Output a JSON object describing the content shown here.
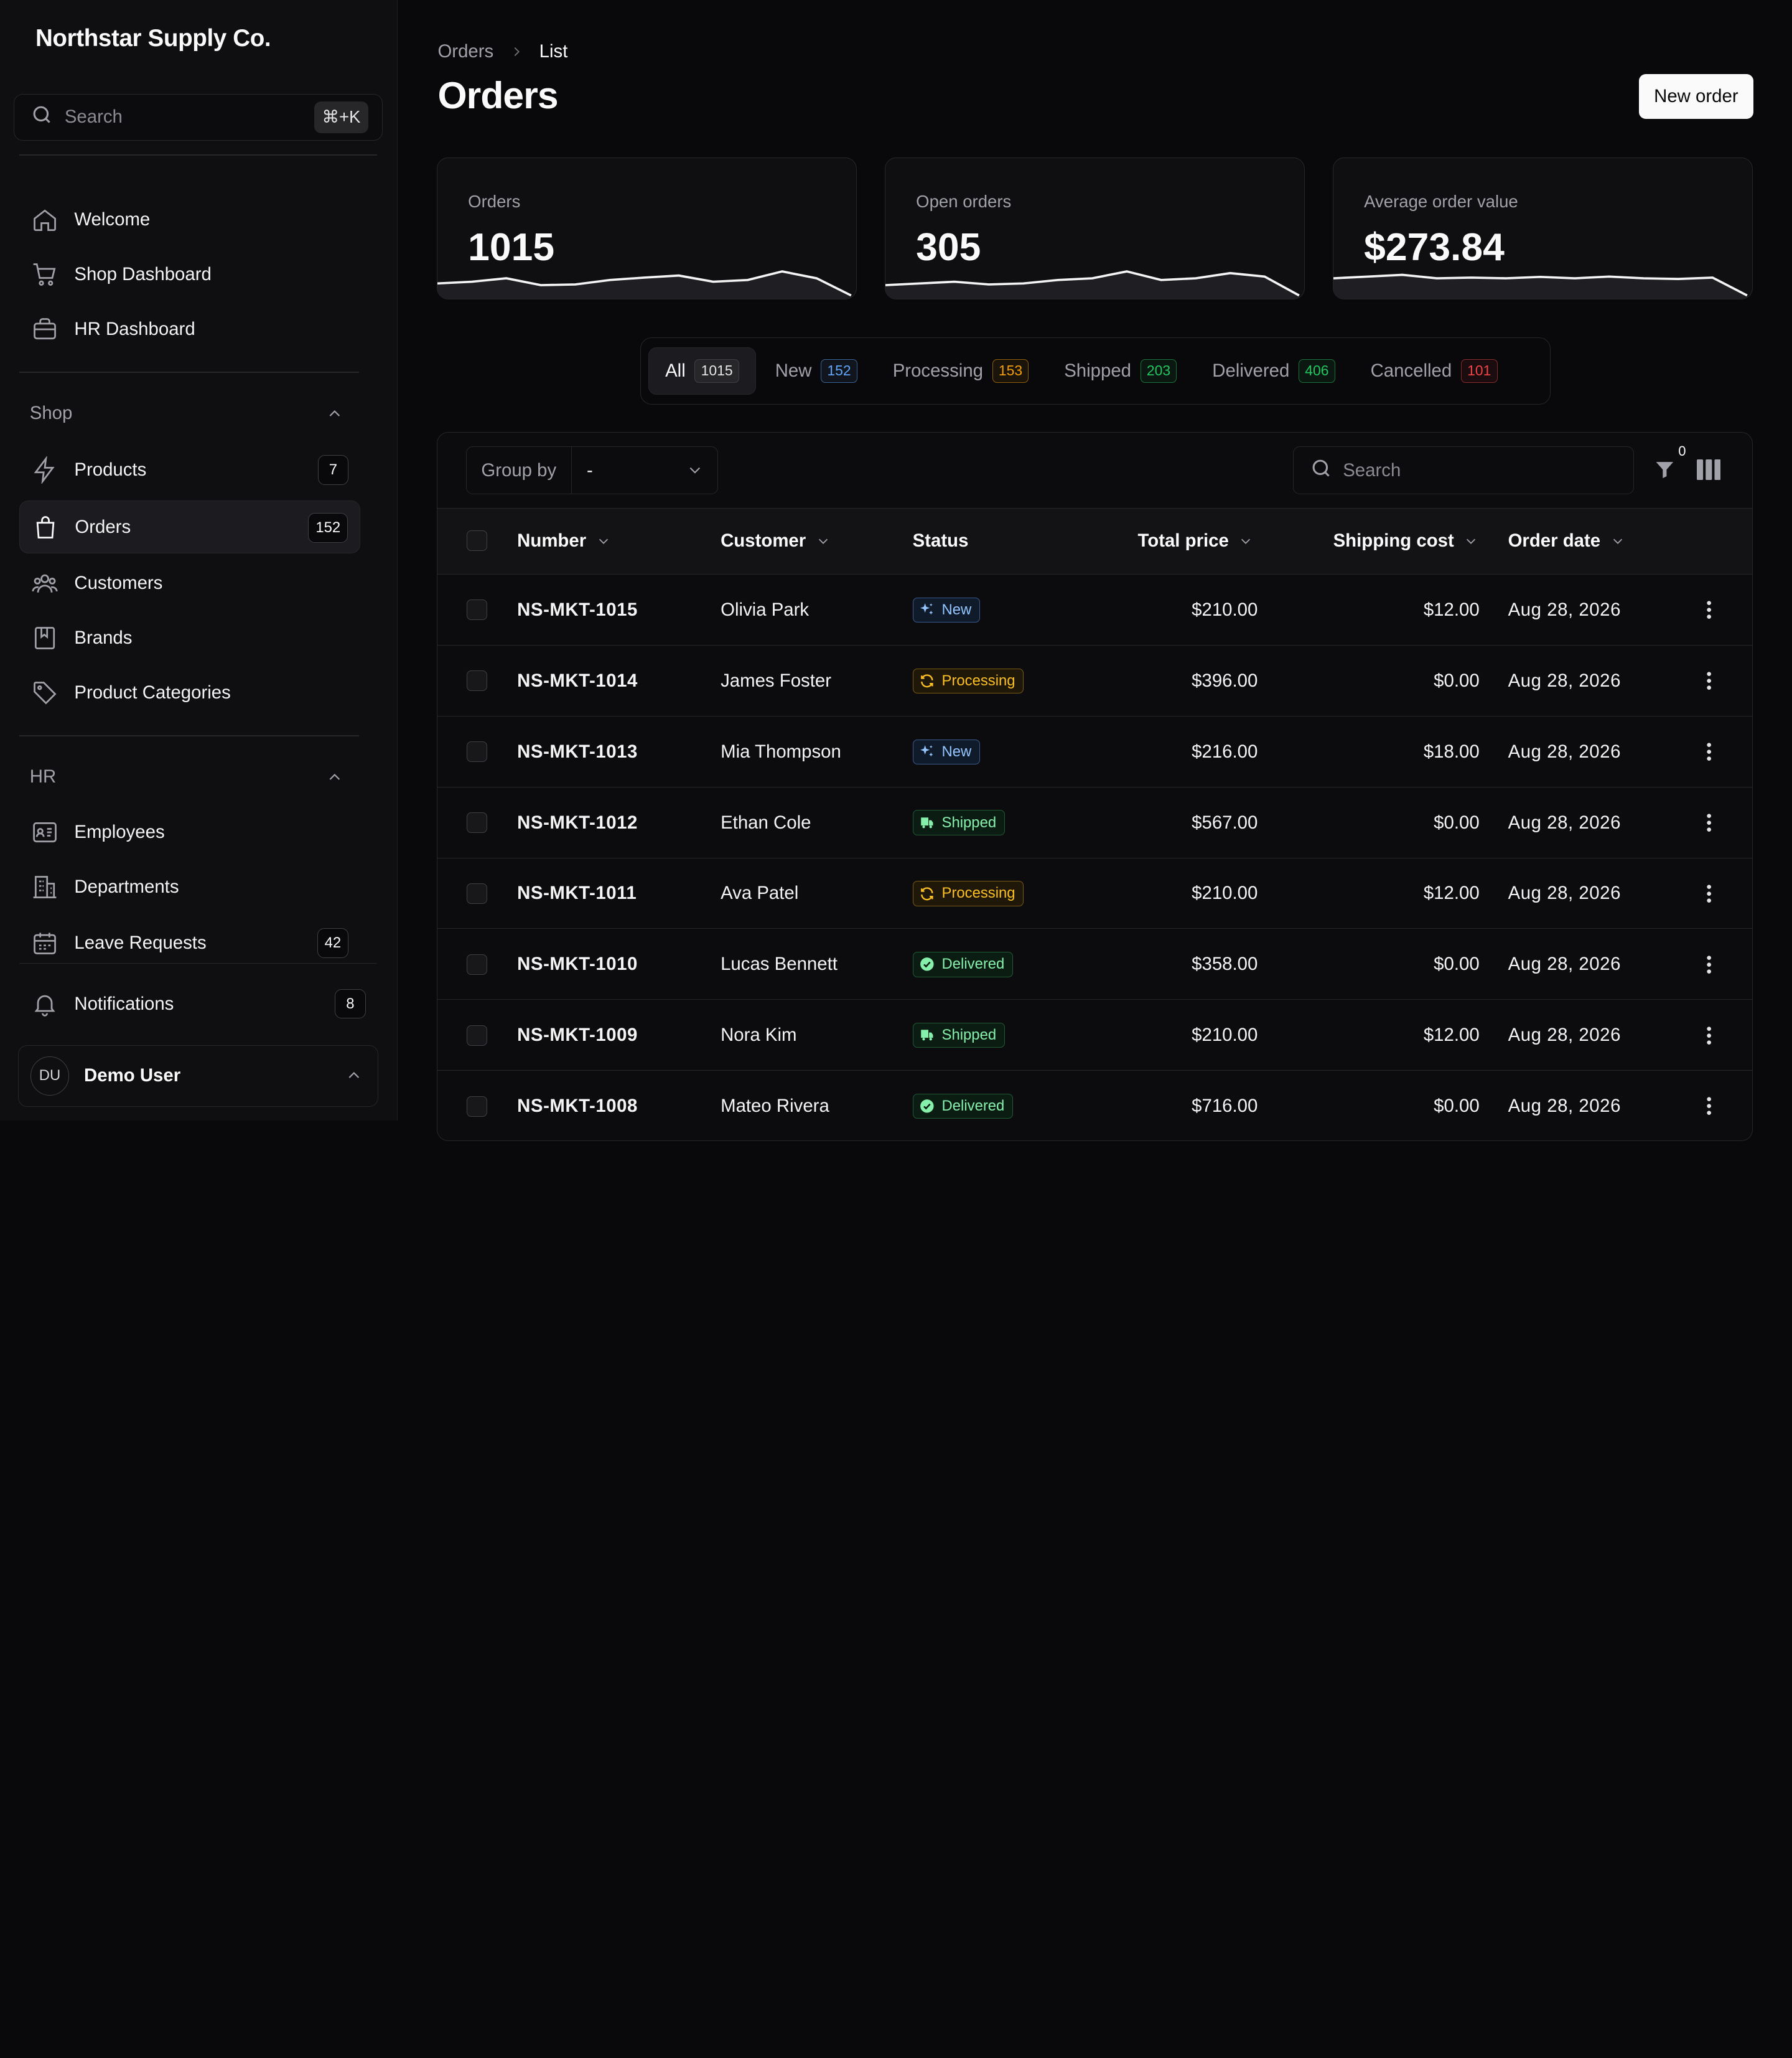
{
  "app": {
    "brand": "Northstar Supply Co."
  },
  "sidebar": {
    "search_placeholder": "Search",
    "search_shortcut": "⌘+K",
    "top_items": [
      {
        "label": "Welcome",
        "icon": "home-icon"
      },
      {
        "label": "Shop Dashboard",
        "icon": "cart-icon"
      },
      {
        "label": "HR Dashboard",
        "icon": "briefcase-icon"
      }
    ],
    "groups": [
      {
        "label": "Shop",
        "items": [
          {
            "label": "Products",
            "icon": "bolt-icon",
            "badge": "7"
          },
          {
            "label": "Orders",
            "icon": "bag-icon",
            "badge": "152",
            "active": true
          },
          {
            "label": "Customers",
            "icon": "users-icon"
          },
          {
            "label": "Brands",
            "icon": "book-icon"
          },
          {
            "label": "Product Categories",
            "icon": "tag-icon"
          }
        ]
      },
      {
        "label": "HR",
        "items": [
          {
            "label": "Employees",
            "icon": "id-card-icon"
          },
          {
            "label": "Departments",
            "icon": "building-icon"
          },
          {
            "label": "Leave Requests",
            "icon": "calendar-icon",
            "badge": "42"
          }
        ]
      }
    ],
    "notifications": {
      "label": "Notifications",
      "badge": "8"
    },
    "user": {
      "initials": "DU",
      "name": "Demo User"
    }
  },
  "header": {
    "breadcrumb": [
      "Orders",
      "List"
    ],
    "title": "Orders",
    "new_button": "New order"
  },
  "stats": [
    {
      "label": "Orders",
      "value": "1015",
      "trend": [
        0.45,
        0.5,
        0.6,
        0.4,
        0.42,
        0.55,
        0.62,
        0.68,
        0.5,
        0.55,
        0.8,
        0.6,
        0.1
      ]
    },
    {
      "label": "Open orders",
      "value": "305",
      "trend": [
        0.4,
        0.45,
        0.5,
        0.42,
        0.45,
        0.55,
        0.6,
        0.8,
        0.55,
        0.6,
        0.75,
        0.65,
        0.1
      ]
    },
    {
      "label": "Average order value",
      "value": "$273.84",
      "trend": [
        0.6,
        0.65,
        0.7,
        0.6,
        0.62,
        0.6,
        0.64,
        0.6,
        0.65,
        0.6,
        0.58,
        0.62,
        0.1
      ]
    }
  ],
  "tabs": [
    {
      "label": "All",
      "count": "1015",
      "active": true,
      "color": "#a1a1aa"
    },
    {
      "label": "New",
      "count": "152",
      "color": "#60a5fa"
    },
    {
      "label": "Processing",
      "count": "153",
      "color": "#f59e0b"
    },
    {
      "label": "Shipped",
      "count": "203",
      "color": "#22c55e"
    },
    {
      "label": "Delivered",
      "count": "406",
      "color": "#22c55e"
    },
    {
      "label": "Cancelled",
      "count": "101",
      "color": "#ef4444"
    }
  ],
  "toolbar": {
    "group_by_label": "Group by",
    "group_by_value": "-",
    "search_placeholder": "Search",
    "filter_count": "0"
  },
  "table": {
    "columns": [
      "Number",
      "Customer",
      "Status",
      "Total price",
      "Shipping cost",
      "Order date"
    ],
    "rows": [
      {
        "number": "NS-MKT-1015",
        "customer": "Olivia Park",
        "status": "New",
        "total": "$210.00",
        "shipping": "$12.00",
        "date": "Aug 28, 2026"
      },
      {
        "number": "NS-MKT-1014",
        "customer": "James Foster",
        "status": "Processing",
        "total": "$396.00",
        "shipping": "$0.00",
        "date": "Aug 28, 2026"
      },
      {
        "number": "NS-MKT-1013",
        "customer": "Mia Thompson",
        "status": "New",
        "total": "$216.00",
        "shipping": "$18.00",
        "date": "Aug 28, 2026"
      },
      {
        "number": "NS-MKT-1012",
        "customer": "Ethan Cole",
        "status": "Shipped",
        "total": "$567.00",
        "shipping": "$0.00",
        "date": "Aug 28, 2026"
      },
      {
        "number": "NS-MKT-1011",
        "customer": "Ava Patel",
        "status": "Processing",
        "total": "$210.00",
        "shipping": "$12.00",
        "date": "Aug 28, 2026"
      },
      {
        "number": "NS-MKT-1010",
        "customer": "Lucas Bennett",
        "status": "Delivered",
        "total": "$358.00",
        "shipping": "$0.00",
        "date": "Aug 28, 2026"
      },
      {
        "number": "NS-MKT-1009",
        "customer": "Nora Kim",
        "status": "Shipped",
        "total": "$210.00",
        "shipping": "$12.00",
        "date": "Aug 28, 2026"
      },
      {
        "number": "NS-MKT-1008",
        "customer": "Mateo Rivera",
        "status": "Delivered",
        "total": "$716.00",
        "shipping": "$0.00",
        "date": "Aug 28, 2026"
      }
    ]
  },
  "status_colors": {
    "New": {
      "fg": "#93c5fd",
      "border": "#3b5b8f",
      "bg": "#0f1a2b"
    },
    "Processing": {
      "fg": "#fbbf24",
      "border": "#7a5a14",
      "bg": "#1f1708"
    },
    "Shipped": {
      "fg": "#86efac",
      "border": "#1f5a35",
      "bg": "#0b1d12"
    },
    "Delivered": {
      "fg": "#86efac",
      "border": "#1f5a35",
      "bg": "#0b1d12"
    },
    "Cancelled": {
      "fg": "#fca5a5",
      "border": "#7f1d1d",
      "bg": "#1f0b0b"
    }
  }
}
